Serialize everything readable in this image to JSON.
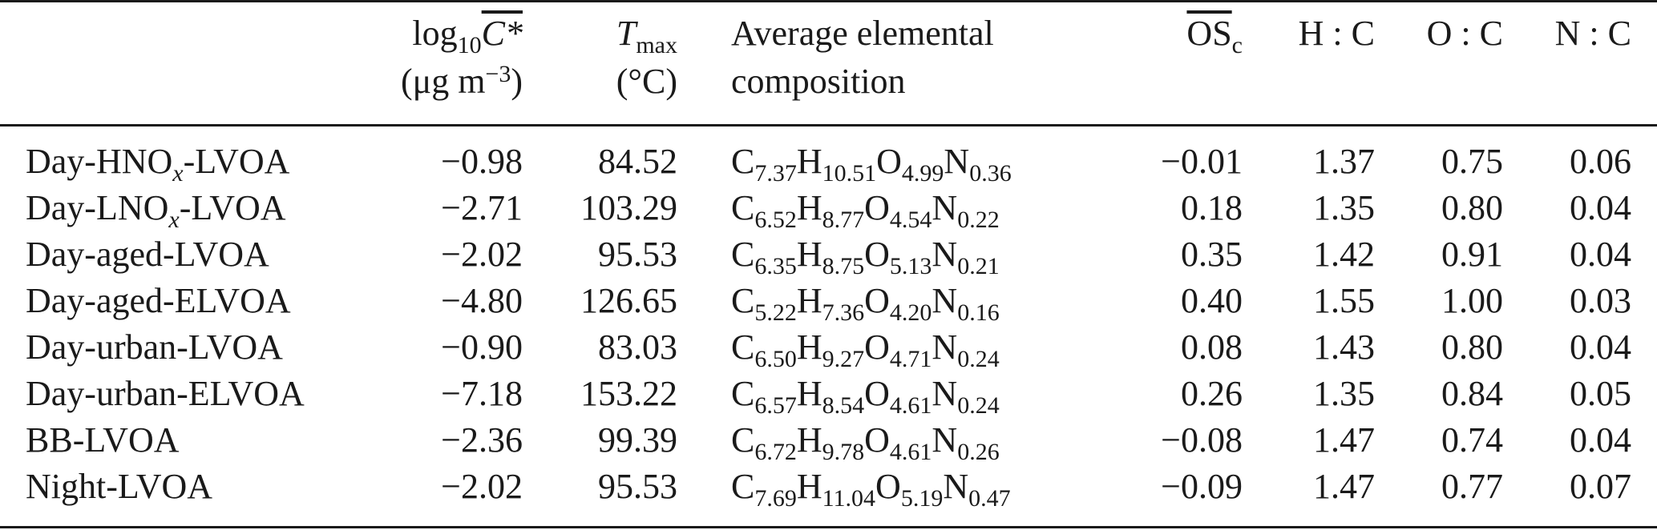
{
  "header": {
    "col_logc": {
      "line1_prefix": "log",
      "line1_sub": "10",
      "line1_sym": "C*",
      "line2_open": "(μg m",
      "line2_sup": "−3",
      "line2_close": ")"
    },
    "col_tmax": {
      "line1_sym": "T",
      "line1_sub": "max",
      "line2": "(°C)"
    },
    "col_comp": {
      "line1": "Average elemental",
      "line2": "composition"
    },
    "col_osc": {
      "sym": "OS",
      "sub": "c"
    },
    "col_hc": "H : C",
    "col_oc": "O : C",
    "col_nc": "N : C"
  },
  "rows": [
    {
      "name_pre": "Day-HNO",
      "name_sub": "x",
      "name_post": "-LVOA",
      "logc": "−0.98",
      "tmax": "84.52",
      "c": "7.37",
      "h": "10.51",
      "o": "4.99",
      "n": "0.36",
      "osc": "−0.01",
      "hc": "1.37",
      "oc": "0.75",
      "nc": "0.06"
    },
    {
      "name_pre": "Day-LNO",
      "name_sub": "x",
      "name_post": "-LVOA",
      "logc": "−2.71",
      "tmax": "103.29",
      "c": "6.52",
      "h": "8.77",
      "o": "4.54",
      "n": "0.22",
      "osc": "0.18",
      "hc": "1.35",
      "oc": "0.80",
      "nc": "0.04"
    },
    {
      "name_pre": "Day-aged-LVOA",
      "name_sub": "",
      "name_post": "",
      "logc": "−2.02",
      "tmax": "95.53",
      "c": "6.35",
      "h": "8.75",
      "o": "5.13",
      "n": "0.21",
      "osc": "0.35",
      "hc": "1.42",
      "oc": "0.91",
      "nc": "0.04"
    },
    {
      "name_pre": "Day-aged-ELVOA",
      "name_sub": "",
      "name_post": "",
      "logc": "−4.80",
      "tmax": "126.65",
      "c": "5.22",
      "h": "7.36",
      "o": "4.20",
      "n": "0.16",
      "osc": "0.40",
      "hc": "1.55",
      "oc": "1.00",
      "nc": "0.03"
    },
    {
      "name_pre": "Day-urban-LVOA",
      "name_sub": "",
      "name_post": "",
      "logc": "−0.90",
      "tmax": "83.03",
      "c": "6.50",
      "h": "9.27",
      "o": "4.71",
      "n": "0.24",
      "osc": "0.08",
      "hc": "1.43",
      "oc": "0.80",
      "nc": "0.04"
    },
    {
      "name_pre": "Day-urban-ELVOA",
      "name_sub": "",
      "name_post": "",
      "logc": "−7.18",
      "tmax": "153.22",
      "c": "6.57",
      "h": "8.54",
      "o": "4.61",
      "n": "0.24",
      "osc": "0.26",
      "hc": "1.35",
      "oc": "0.84",
      "nc": "0.05"
    },
    {
      "name_pre": "BB-LVOA",
      "name_sub": "",
      "name_post": "",
      "logc": "−2.36",
      "tmax": "99.39",
      "c": "6.72",
      "h": "9.78",
      "o": "4.61",
      "n": "0.26",
      "osc": "−0.08",
      "hc": "1.47",
      "oc": "0.74",
      "nc": "0.04"
    },
    {
      "name_pre": "Night-LVOA",
      "name_sub": "",
      "name_post": "",
      "logc": "−2.02",
      "tmax": "95.53",
      "c": "7.69",
      "h": "11.04",
      "o": "5.19",
      "n": "0.47",
      "osc": "−0.09",
      "hc": "1.47",
      "oc": "0.77",
      "nc": "0.07"
    }
  ]
}
